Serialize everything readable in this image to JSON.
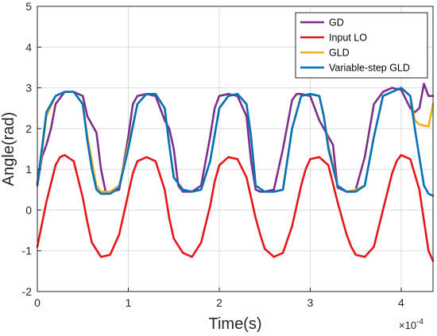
{
  "chart_data": {
    "type": "line",
    "xlabel": "Time(s)",
    "ylabel": "Angle(rad)",
    "x_exponent_base": "×10",
    "x_exponent_power": "-4",
    "xlim": [
      0,
      4.35
    ],
    "ylim": [
      -2,
      5
    ],
    "xticks": [
      0,
      1,
      2,
      3,
      4
    ],
    "xtick_labels": [
      "0",
      "1",
      "2",
      "3",
      "4"
    ],
    "yticks": [
      -2,
      -1,
      0,
      1,
      2,
      3,
      4,
      5
    ],
    "ytick_labels": [
      "-2",
      "-1",
      "0",
      "1",
      "2",
      "3",
      "4",
      "5"
    ],
    "grid": true,
    "legend_position": "top-right",
    "x_units_note": "x values in units of 1e-4 s",
    "series": [
      {
        "name": "GD",
        "color": "#7E2F8E",
        "x": [
          0,
          0.05,
          0.1,
          0.15,
          0.2,
          0.3,
          0.4,
          0.5,
          0.55,
          0.6,
          0.65,
          0.7,
          0.75,
          0.8,
          0.9,
          1.0,
          1.05,
          1.1,
          1.2,
          1.3,
          1.35,
          1.4,
          1.45,
          1.5,
          1.55,
          1.6,
          1.7,
          1.8,
          1.9,
          1.95,
          2.0,
          2.1,
          2.2,
          2.3,
          2.35,
          2.4,
          2.45,
          2.5,
          2.6,
          2.7,
          2.8,
          2.85,
          2.9,
          3.0,
          3.1,
          3.2,
          3.25,
          3.3,
          3.4,
          3.45,
          3.5,
          3.6,
          3.7,
          3.8,
          3.85,
          3.9,
          4.0,
          4.1,
          4.15,
          4.2,
          4.25,
          4.3,
          4.35
        ],
        "y": [
          0.6,
          1.3,
          1.6,
          2.0,
          2.6,
          2.9,
          2.9,
          2.8,
          2.3,
          2.1,
          1.9,
          1.0,
          0.45,
          0.45,
          0.5,
          1.8,
          2.6,
          2.8,
          2.85,
          2.8,
          2.5,
          2.2,
          2.0,
          1.5,
          0.6,
          0.45,
          0.45,
          0.6,
          1.8,
          2.5,
          2.8,
          2.85,
          2.8,
          2.3,
          1.2,
          0.5,
          0.45,
          0.45,
          0.5,
          1.5,
          2.7,
          2.85,
          2.85,
          2.8,
          2.2,
          1.8,
          1.6,
          0.55,
          0.45,
          0.45,
          0.5,
          1.3,
          2.6,
          2.9,
          2.95,
          3.0,
          2.95,
          2.5,
          2.4,
          2.5,
          3.1,
          2.8,
          2.8
        ]
      },
      {
        "name": "Input LO",
        "color": "#E5171B",
        "x": [
          0,
          0.1,
          0.2,
          0.25,
          0.3,
          0.4,
          0.5,
          0.55,
          0.6,
          0.7,
          0.8,
          0.9,
          1.0,
          1.05,
          1.1,
          1.2,
          1.3,
          1.4,
          1.45,
          1.5,
          1.6,
          1.7,
          1.8,
          1.9,
          1.95,
          2.0,
          2.1,
          2.2,
          2.3,
          2.4,
          2.45,
          2.5,
          2.6,
          2.7,
          2.8,
          2.9,
          2.95,
          3.0,
          3.1,
          3.2,
          3.3,
          3.4,
          3.45,
          3.5,
          3.6,
          3.7,
          3.8,
          3.9,
          3.95,
          4.0,
          4.1,
          4.2,
          4.3,
          4.35
        ],
        "y": [
          -0.9,
          0.2,
          1.1,
          1.3,
          1.35,
          1.2,
          0.3,
          -0.3,
          -0.8,
          -1.15,
          -1.1,
          -0.6,
          0.4,
          0.9,
          1.2,
          1.3,
          1.2,
          0.5,
          -0.2,
          -0.7,
          -1.05,
          -1.15,
          -0.8,
          0.1,
          0.7,
          1.1,
          1.3,
          1.25,
          0.8,
          -0.2,
          -0.6,
          -0.95,
          -1.15,
          -1.05,
          -0.4,
          0.6,
          1.0,
          1.25,
          1.3,
          1.1,
          0.2,
          -0.6,
          -0.9,
          -1.1,
          -1.15,
          -0.9,
          0.0,
          0.9,
          1.2,
          1.35,
          1.25,
          0.5,
          -1.0,
          -1.25
        ]
      },
      {
        "name": "GLD",
        "color": "#EDB120",
        "x": [
          0,
          0.05,
          0.1,
          0.2,
          0.3,
          0.4,
          0.5,
          0.55,
          0.6,
          0.65,
          0.7,
          0.8,
          0.9,
          1.0,
          1.1,
          1.2,
          1.3,
          1.4,
          1.45,
          1.5,
          1.6,
          1.7,
          1.8,
          1.9,
          2.0,
          2.1,
          2.2,
          2.3,
          2.35,
          2.4,
          2.5,
          2.6,
          2.7,
          2.8,
          2.9,
          3.0,
          3.1,
          3.15,
          3.2,
          3.3,
          3.4,
          3.5,
          3.6,
          3.7,
          3.8,
          3.9,
          4.0,
          4.1,
          4.15,
          4.2,
          4.3,
          4.35
        ],
        "y": [
          0.65,
          1.4,
          2.3,
          2.8,
          2.9,
          2.9,
          2.6,
          1.8,
          1.2,
          0.6,
          0.45,
          0.45,
          0.6,
          1.6,
          2.6,
          2.85,
          2.85,
          2.5,
          1.6,
          0.8,
          0.5,
          0.45,
          0.5,
          1.2,
          2.5,
          2.8,
          2.85,
          2.6,
          1.8,
          0.6,
          0.45,
          0.45,
          0.5,
          2.0,
          2.8,
          2.85,
          2.8,
          2.3,
          1.6,
          0.6,
          0.45,
          0.5,
          0.6,
          1.8,
          2.8,
          2.9,
          3.0,
          2.8,
          2.2,
          2.1,
          2.05,
          2.6
        ]
      },
      {
        "name": "Variable-step GLD",
        "color": "#0072BD",
        "x": [
          0,
          0.05,
          0.1,
          0.2,
          0.3,
          0.4,
          0.5,
          0.55,
          0.6,
          0.65,
          0.7,
          0.8,
          0.9,
          1.0,
          1.1,
          1.2,
          1.3,
          1.4,
          1.45,
          1.5,
          1.6,
          1.7,
          1.8,
          1.9,
          2.0,
          2.1,
          2.2,
          2.3,
          2.35,
          2.4,
          2.5,
          2.6,
          2.7,
          2.8,
          2.9,
          3.0,
          3.1,
          3.15,
          3.2,
          3.3,
          3.4,
          3.5,
          3.6,
          3.7,
          3.8,
          3.9,
          4.0,
          4.1,
          4.15,
          4.2,
          4.25,
          4.3,
          4.35
        ],
        "y": [
          0.65,
          1.5,
          2.4,
          2.8,
          2.9,
          2.9,
          2.6,
          1.7,
          1.0,
          0.5,
          0.4,
          0.4,
          0.55,
          1.5,
          2.6,
          2.85,
          2.85,
          2.5,
          1.6,
          0.8,
          0.5,
          0.45,
          0.5,
          1.2,
          2.5,
          2.8,
          2.85,
          2.6,
          1.8,
          0.6,
          0.45,
          0.45,
          0.5,
          2.0,
          2.8,
          2.85,
          2.8,
          2.3,
          1.5,
          0.6,
          0.45,
          0.45,
          0.6,
          1.8,
          2.8,
          2.9,
          3.0,
          2.8,
          2.0,
          1.3,
          0.6,
          0.4,
          0.35
        ]
      }
    ]
  }
}
